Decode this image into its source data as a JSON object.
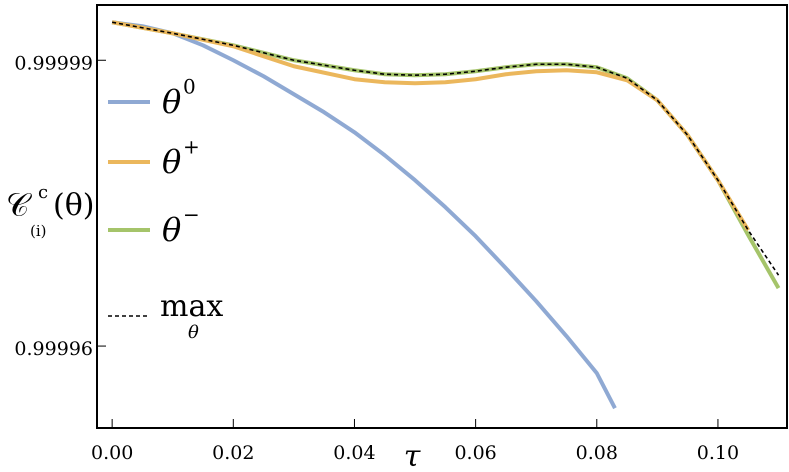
{
  "chart_data": {
    "type": "line",
    "x_label": "τ",
    "y_label": {
      "base": "𝒞",
      "sup": "c",
      "sub": "(i)",
      "arg": "(θ)"
    },
    "xlim": [
      -0.0025,
      0.1114
    ],
    "ylim": [
      0.9999514,
      0.9999958
    ],
    "xticks": [
      {
        "value": 0,
        "label": "0.00"
      },
      {
        "value": 0.02,
        "label": "0.02"
      },
      {
        "value": 0.04,
        "label": "0.04"
      },
      {
        "value": 0.06,
        "label": "0.06"
      },
      {
        "value": 0.08,
        "label": "0.08"
      },
      {
        "value": 0.1,
        "label": "0.10"
      }
    ],
    "yticks": [
      0.99999,
      0.99996
    ],
    "series": [
      {
        "name": "θ0",
        "name_base": "θ",
        "name_sup": "0",
        "color": "#8fa9d3",
        "style": "solid",
        "x": [
          0,
          0.005,
          0.01,
          0.015,
          0.02,
          0.025,
          0.03,
          0.035,
          0.04,
          0.045,
          0.05,
          0.055,
          0.06,
          0.065,
          0.07,
          0.075,
          0.08,
          0.083
        ],
        "values": [
          0.99999399,
          0.99999357,
          0.99999283,
          0.99999157,
          0.99999,
          0.99998832,
          0.99998643,
          0.99998454,
          0.99998244,
          0.99998003,
          0.99997741,
          0.99997458,
          0.99997153,
          0.99996817,
          0.99996471,
          0.99996104,
          0.99995716,
          0.99995348
        ]
      },
      {
        "name": "θ−",
        "name_base": "θ",
        "name_sup": "−",
        "color": "#a5c46a",
        "style": "solid",
        "x": [
          0,
          0.01,
          0.02,
          0.03,
          0.04,
          0.045,
          0.05,
          0.055,
          0.06,
          0.065,
          0.07,
          0.075,
          0.08,
          0.085,
          0.09,
          0.095,
          0.1,
          0.105,
          0.11
        ],
        "values": [
          0.99999399,
          0.99999283,
          0.99999157,
          0.99999,
          0.99998895,
          0.99998853,
          0.99998843,
          0.99998853,
          0.99998885,
          0.99998927,
          0.99998958,
          0.99998958,
          0.99998927,
          0.99998811,
          0.9999858,
          0.99998213,
          0.99997741,
          0.99997164,
          0.99996608
        ]
      },
      {
        "name": "θ+",
        "name_base": "θ",
        "name_sup": "+",
        "color": "#ebb75c",
        "style": "solid",
        "x": [
          0,
          0.01,
          0.02,
          0.03,
          0.04,
          0.045,
          0.05,
          0.055,
          0.06,
          0.065,
          0.07,
          0.075,
          0.08,
          0.085,
          0.09,
          0.095,
          0.1,
          0.105
        ],
        "values": [
          0.99999399,
          0.99999283,
          0.99999147,
          0.99998937,
          0.99998801,
          0.99998769,
          0.99998759,
          0.99998769,
          0.99998801,
          0.99998853,
          0.99998885,
          0.99998895,
          0.99998874,
          0.9999879,
          0.9999858,
          0.99998213,
          0.99997741,
          0.99997216
        ]
      },
      {
        "name": "max",
        "name_sub": "θ",
        "color": "#000000",
        "style": "dashed",
        "x": [
          0,
          0.01,
          0.02,
          0.03,
          0.04,
          0.045,
          0.05,
          0.055,
          0.06,
          0.065,
          0.07,
          0.075,
          0.08,
          0.085,
          0.09,
          0.095,
          0.1,
          0.105,
          0.11
        ],
        "values": [
          0.99999399,
          0.99999283,
          0.99999157,
          0.99999,
          0.99998895,
          0.99998853,
          0.99998843,
          0.99998853,
          0.99998885,
          0.99998927,
          0.99998958,
          0.99998958,
          0.99998927,
          0.99998811,
          0.9999858,
          0.99998213,
          0.99997741,
          0.99997216,
          0.99996744
        ]
      }
    ]
  }
}
